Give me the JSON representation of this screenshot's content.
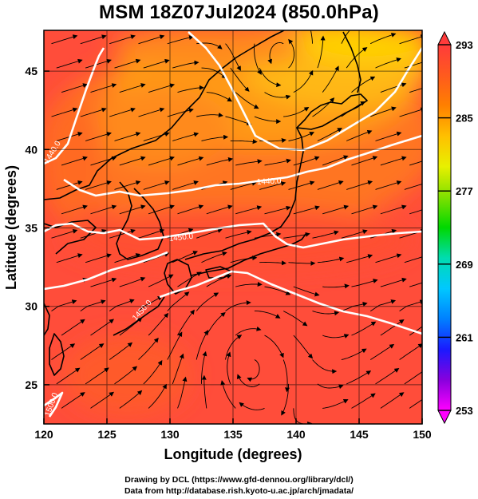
{
  "title": "MSM 18Z07Jul2024 (850.0hPa)",
  "x_axis": {
    "label": "Longitude (degrees)",
    "range": [
      120,
      150
    ],
    "ticks": [
      120,
      125,
      130,
      135,
      140,
      145,
      150
    ]
  },
  "y_axis": {
    "label": "Latitude  (degrees)",
    "range": [
      22.5,
      47.6
    ],
    "ticks": [
      25,
      30,
      35,
      40,
      45
    ]
  },
  "colorbar": {
    "ticks": [
      293,
      285,
      277,
      269,
      261,
      253
    ],
    "range": [
      253,
      293
    ],
    "colors": [
      "#ff00ff",
      "#8800dd",
      "#1a1aff",
      "#0080ff",
      "#00c8ff",
      "#00dcb0",
      "#00d800",
      "#80e000",
      "#e8f000",
      "#ffc000",
      "#ff8000",
      "#ff5a1e",
      "#ff3b3b"
    ]
  },
  "contours": [
    {
      "label": "1440.0"
    },
    {
      "label": "1440.0"
    },
    {
      "label": "1450.0"
    },
    {
      "label": "1450.0"
    },
    {
      "label": "1500.0"
    }
  ],
  "credits": [
    "Drawing by DCL (https://www.gfd-dennou.org/library/dcl/)",
    "Data from http://database.rish.kyoto-u.ac.jp/arch/jmadata/"
  ],
  "map_colors": {
    "warm": "#ff4a3a",
    "mid": "#ff6a22",
    "cool": "#ffa020",
    "cold": "#ffd000",
    "contour": "#ffffff",
    "streamline": "#000000"
  }
}
